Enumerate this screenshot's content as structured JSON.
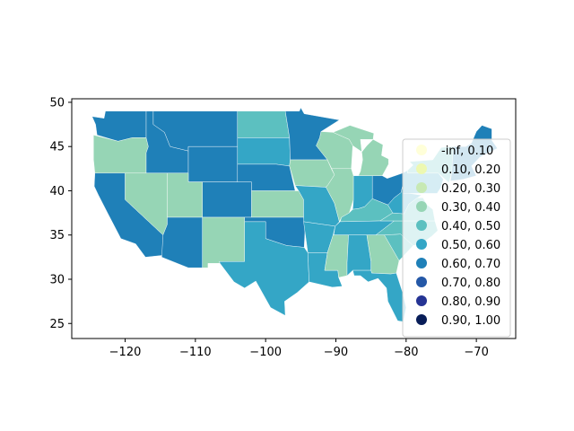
{
  "chart_data": {
    "type": "choropleth",
    "title": "",
    "xlabel": "",
    "ylabel": "",
    "xlim": [
      -127.6,
      -64.4
    ],
    "ylim": [
      23.3,
      50.4
    ],
    "x_ticks": [
      -120,
      -110,
      -100,
      -90,
      -80,
      -70
    ],
    "x_tick_labels": [
      "−120",
      "−110",
      "−100",
      "−90",
      "−80",
      "−70"
    ],
    "y_ticks": [
      25,
      30,
      35,
      40,
      45,
      50
    ],
    "y_tick_labels": [
      "25",
      "30",
      "35",
      "40",
      "45",
      "50"
    ],
    "grid": false,
    "legend_position": "right",
    "legend": [
      {
        "label": "-inf, 0.10",
        "color": "#ffffd9"
      },
      {
        "label": "0.10, 0.20",
        "color": "#edf8b1"
      },
      {
        "label": "0.20, 0.30",
        "color": "#c7e9b4"
      },
      {
        "label": "0.30, 0.40",
        "color": "#96d5b5"
      },
      {
        "label": "0.40, 0.50",
        "color": "#5cc0c0"
      },
      {
        "label": "0.50, 0.60",
        "color": "#34a6c6"
      },
      {
        "label": "0.60, 0.70",
        "color": "#1f80b8"
      },
      {
        "label": "0.70, 0.80",
        "color": "#2458a7"
      },
      {
        "label": "0.80, 0.90",
        "color": "#253494"
      },
      {
        "label": "0.90, 1.00",
        "color": "#081d58"
      }
    ],
    "regions": [
      {
        "id": "WA",
        "class": 6
      },
      {
        "id": "OR",
        "class": 3
      },
      {
        "id": "CA",
        "class": 6
      },
      {
        "id": "ID",
        "class": 6
      },
      {
        "id": "NV",
        "class": 3
      },
      {
        "id": "MT",
        "class": 6
      },
      {
        "id": "WY",
        "class": 6
      },
      {
        "id": "UT",
        "class": 3
      },
      {
        "id": "AZ",
        "class": 6
      },
      {
        "id": "CO",
        "class": 6
      },
      {
        "id": "NM",
        "class": 3
      },
      {
        "id": "ND",
        "class": 4
      },
      {
        "id": "SD",
        "class": 5
      },
      {
        "id": "NE",
        "class": 6
      },
      {
        "id": "KS",
        "class": 3
      },
      {
        "id": "OK",
        "class": 6
      },
      {
        "id": "TX",
        "class": 5
      },
      {
        "id": "MN",
        "class": 6
      },
      {
        "id": "IA",
        "class": 3
      },
      {
        "id": "MO",
        "class": 5
      },
      {
        "id": "AR",
        "class": 5
      },
      {
        "id": "LA",
        "class": 5
      },
      {
        "id": "WI",
        "class": 3
      },
      {
        "id": "IL",
        "class": 3
      },
      {
        "id": "MI",
        "class": 3
      },
      {
        "id": "IN",
        "class": 5
      },
      {
        "id": "OH",
        "class": 6
      },
      {
        "id": "KY",
        "class": 4
      },
      {
        "id": "TN",
        "class": 5
      },
      {
        "id": "MS",
        "class": 3
      },
      {
        "id": "AL",
        "class": 5
      },
      {
        "id": "GA",
        "class": 3
      },
      {
        "id": "FL",
        "class": 5
      },
      {
        "id": "SC",
        "class": 4
      },
      {
        "id": "NC",
        "class": 4
      },
      {
        "id": "VA",
        "class": 4
      },
      {
        "id": "WV",
        "class": 5
      },
      {
        "id": "PA",
        "class": 5
      },
      {
        "id": "NY",
        "class": 4
      },
      {
        "id": "NE_NEW_ENGLAND",
        "class": 6
      }
    ]
  }
}
